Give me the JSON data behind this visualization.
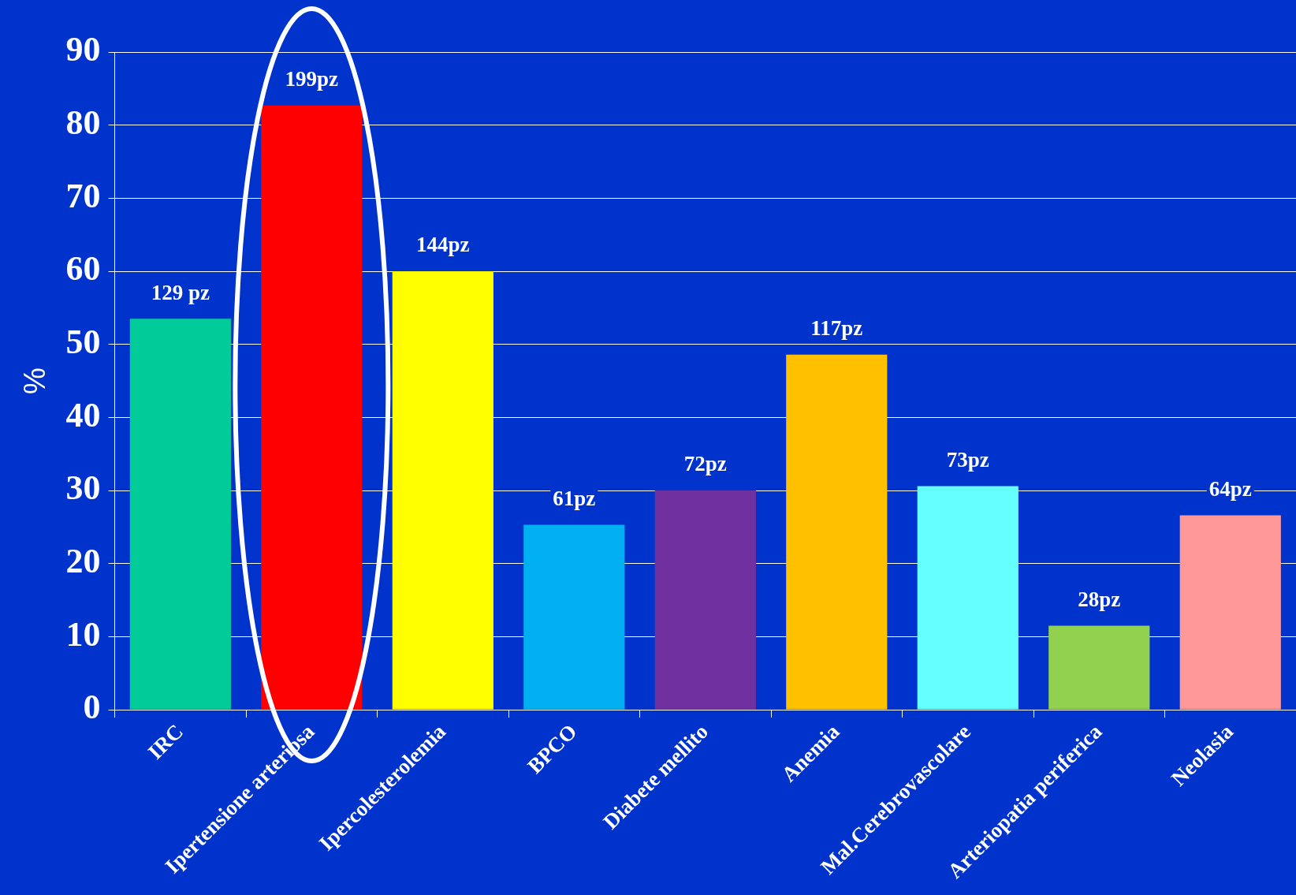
{
  "chart_data": {
    "type": "bar",
    "ylabel": "%",
    "categories": [
      "IRC",
      "Ipertensione arteriosa",
      "Ipercolesterolemia",
      "BPCO",
      "Diabete mellito",
      "Anemia",
      "Mal.Cerebrovascolare",
      "Arteriopatia periferica",
      "Neolasia"
    ],
    "values": [
      53.5,
      82.7,
      60,
      25.3,
      30,
      48.6,
      30.6,
      11.5,
      26.6
    ],
    "colors": [
      "#00cc99",
      "#ff0000",
      "#ffff00",
      "#00b0f0",
      "#7030a0",
      "#ffc000",
      "#66ffff",
      "#92d050",
      "#ff9999"
    ],
    "annotations": [
      {
        "text": "129 pz",
        "x": "IRC",
        "y": 53.5
      },
      {
        "text": "199pz",
        "x": "Ipertensione arteriosa",
        "y": 82.7
      },
      {
        "text": "144pz",
        "x": "Ipercolesterolemia",
        "y": 60
      },
      {
        "text": "61pz",
        "x": "BPCO",
        "y": 25.3
      },
      {
        "text": "72pz",
        "x": "Diabete mellito",
        "y": 30
      },
      {
        "text": "117pz",
        "x": "Anemia",
        "y": 48.6
      },
      {
        "text": "73pz",
        "x": "Mal.Cerebrovascolare",
        "y": 30.6
      },
      {
        "text": "28pz",
        "x": "Arteriopatia periferica",
        "y": 11.5
      },
      {
        "text": "64pz",
        "x": "Neolasia",
        "y": 26.6
      }
    ],
    "ylim": [
      0,
      90
    ],
    "yticks": [
      0,
      10,
      20,
      30,
      40,
      50,
      60,
      70,
      80,
      90
    ],
    "grid": "y",
    "legend": false
  }
}
